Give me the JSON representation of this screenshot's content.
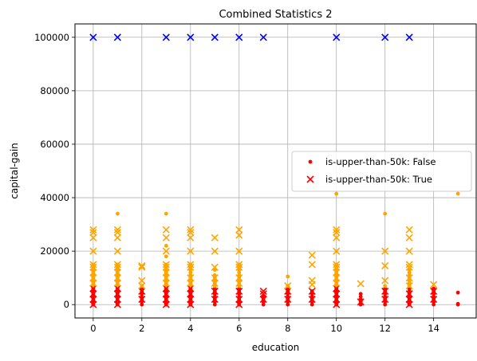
{
  "chart_data": {
    "type": "scatter",
    "title": "Combined Statistics 2",
    "xlabel": "education",
    "ylabel": "capital-gain",
    "xlim": [
      -0.75,
      15.75
    ],
    "ylim": [
      -5000,
      105000
    ],
    "xticks": [
      0,
      2,
      4,
      6,
      8,
      10,
      12,
      14
    ],
    "yticks": [
      0,
      20000,
      40000,
      60000,
      80000,
      100000
    ],
    "grid": true,
    "legend": "center-right",
    "colors": {
      "low": "#ff0000",
      "mid": "#ffa500",
      "high": "#0000ff"
    },
    "series": [
      {
        "name": "is-upper-than-50k: False",
        "marker": "dot",
        "points": [
          [
            0,
            0
          ],
          [
            0,
            1000
          ],
          [
            0,
            2000
          ],
          [
            0,
            3000
          ],
          [
            0,
            4000
          ],
          [
            0,
            5000
          ],
          [
            0,
            6000
          ],
          [
            0,
            7000
          ],
          [
            0,
            8000
          ],
          [
            0,
            9000
          ],
          [
            0,
            10000
          ],
          [
            0,
            11000
          ],
          [
            0,
            12000
          ],
          [
            0,
            13000
          ],
          [
            0,
            14000
          ],
          [
            0,
            15000
          ],
          [
            1,
            0
          ],
          [
            1,
            1000
          ],
          [
            1,
            2000
          ],
          [
            1,
            3000
          ],
          [
            1,
            4000
          ],
          [
            1,
            5000
          ],
          [
            1,
            6000
          ],
          [
            1,
            7000
          ],
          [
            1,
            8000
          ],
          [
            1,
            9000
          ],
          [
            1,
            10000
          ],
          [
            1,
            11000
          ],
          [
            1,
            12000
          ],
          [
            1,
            13000
          ],
          [
            1,
            14000
          ],
          [
            1,
            15000
          ],
          [
            1,
            34000
          ],
          [
            2,
            0
          ],
          [
            2,
            1000
          ],
          [
            2,
            2000
          ],
          [
            2,
            3000
          ],
          [
            2,
            4000
          ],
          [
            2,
            5000
          ],
          [
            2,
            6000
          ],
          [
            2,
            7000
          ],
          [
            3,
            0
          ],
          [
            3,
            1000
          ],
          [
            3,
            2000
          ],
          [
            3,
            3000
          ],
          [
            3,
            4000
          ],
          [
            3,
            5000
          ],
          [
            3,
            6000
          ],
          [
            3,
            7000
          ],
          [
            3,
            8000
          ],
          [
            3,
            9000
          ],
          [
            3,
            10000
          ],
          [
            3,
            11000
          ],
          [
            3,
            12000
          ],
          [
            3,
            13000
          ],
          [
            3,
            14000
          ],
          [
            3,
            15000
          ],
          [
            3,
            18000
          ],
          [
            3,
            22000
          ],
          [
            3,
            34000
          ],
          [
            4,
            0
          ],
          [
            4,
            1000
          ],
          [
            4,
            2000
          ],
          [
            4,
            3000
          ],
          [
            4,
            4000
          ],
          [
            4,
            5000
          ],
          [
            4,
            6000
          ],
          [
            4,
            7000
          ],
          [
            4,
            8000
          ],
          [
            4,
            9000
          ],
          [
            4,
            10000
          ],
          [
            4,
            11000
          ],
          [
            4,
            12000
          ],
          [
            4,
            13000
          ],
          [
            4,
            14000
          ],
          [
            4,
            15000
          ],
          [
            5,
            0
          ],
          [
            5,
            1000
          ],
          [
            5,
            2000
          ],
          [
            5,
            3000
          ],
          [
            5,
            4000
          ],
          [
            5,
            5000
          ],
          [
            5,
            6000
          ],
          [
            5,
            7000
          ],
          [
            5,
            8000
          ],
          [
            5,
            9000
          ],
          [
            5,
            10000
          ],
          [
            5,
            11000
          ],
          [
            5,
            13000
          ],
          [
            6,
            0
          ],
          [
            6,
            1000
          ],
          [
            6,
            2000
          ],
          [
            6,
            3000
          ],
          [
            6,
            4000
          ],
          [
            6,
            5000
          ],
          [
            6,
            6000
          ],
          [
            6,
            7000
          ],
          [
            6,
            8000
          ],
          [
            6,
            9000
          ],
          [
            6,
            10000
          ],
          [
            6,
            11000
          ],
          [
            6,
            12000
          ],
          [
            6,
            13000
          ],
          [
            6,
            14000
          ],
          [
            6,
            15000
          ],
          [
            7,
            0
          ],
          [
            7,
            1000
          ],
          [
            7,
            2000
          ],
          [
            7,
            3000
          ],
          [
            8,
            0
          ],
          [
            8,
            1000
          ],
          [
            8,
            2000
          ],
          [
            8,
            3000
          ],
          [
            8,
            4000
          ],
          [
            8,
            5000
          ],
          [
            8,
            6000
          ],
          [
            8,
            7000
          ],
          [
            8,
            10500
          ],
          [
            9,
            0
          ],
          [
            9,
            1000
          ],
          [
            9,
            2000
          ],
          [
            9,
            3000
          ],
          [
            9,
            4000
          ],
          [
            9,
            5000
          ],
          [
            10,
            0
          ],
          [
            10,
            1000
          ],
          [
            10,
            2000
          ],
          [
            10,
            3000
          ],
          [
            10,
            4000
          ],
          [
            10,
            5000
          ],
          [
            10,
            6000
          ],
          [
            10,
            7000
          ],
          [
            10,
            8000
          ],
          [
            10,
            9000
          ],
          [
            10,
            10000
          ],
          [
            10,
            11000
          ],
          [
            10,
            12000
          ],
          [
            10,
            13000
          ],
          [
            10,
            14000
          ],
          [
            10,
            15000
          ],
          [
            10,
            41500
          ],
          [
            11,
            0
          ],
          [
            11,
            1000
          ],
          [
            11,
            2000
          ],
          [
            11,
            3000
          ],
          [
            11,
            4000
          ],
          [
            12,
            0
          ],
          [
            12,
            1000
          ],
          [
            12,
            2000
          ],
          [
            12,
            3000
          ],
          [
            12,
            4000
          ],
          [
            12,
            5000
          ],
          [
            12,
            6000
          ],
          [
            12,
            7000
          ],
          [
            12,
            34000
          ],
          [
            13,
            0
          ],
          [
            13,
            1000
          ],
          [
            13,
            2000
          ],
          [
            13,
            3000
          ],
          [
            13,
            4000
          ],
          [
            13,
            5000
          ],
          [
            13,
            6000
          ],
          [
            13,
            7000
          ],
          [
            13,
            8000
          ],
          [
            13,
            9000
          ],
          [
            13,
            10000
          ],
          [
            13,
            11000
          ],
          [
            13,
            12000
          ],
          [
            13,
            13000
          ],
          [
            14,
            0
          ],
          [
            14,
            1000
          ],
          [
            14,
            2000
          ],
          [
            14,
            3000
          ],
          [
            14,
            4000
          ],
          [
            14,
            5000
          ],
          [
            14,
            6000
          ],
          [
            15,
            0
          ],
          [
            15,
            300
          ],
          [
            15,
            4500
          ],
          [
            15,
            41500
          ]
        ]
      },
      {
        "name": "is-upper-than-50k: True",
        "marker": "x",
        "points": [
          [
            0,
            0
          ],
          [
            0,
            2000
          ],
          [
            0,
            4000
          ],
          [
            0,
            6000
          ],
          [
            0,
            8000
          ],
          [
            0,
            10000
          ],
          [
            0,
            12000
          ],
          [
            0,
            14000
          ],
          [
            0,
            15000
          ],
          [
            0,
            20000
          ],
          [
            0,
            25000
          ],
          [
            0,
            27000
          ],
          [
            0,
            28000
          ],
          [
            0,
            99999
          ],
          [
            1,
            0
          ],
          [
            1,
            2000
          ],
          [
            1,
            4000
          ],
          [
            1,
            6000
          ],
          [
            1,
            8000
          ],
          [
            1,
            10000
          ],
          [
            1,
            12000
          ],
          [
            1,
            14000
          ],
          [
            1,
            15000
          ],
          [
            1,
            20000
          ],
          [
            1,
            25000
          ],
          [
            1,
            27000
          ],
          [
            1,
            28000
          ],
          [
            1,
            99999
          ],
          [
            2,
            2000
          ],
          [
            2,
            5000
          ],
          [
            2,
            7000
          ],
          [
            2,
            9000
          ],
          [
            2,
            14000
          ],
          [
            2,
            14500
          ],
          [
            3,
            0
          ],
          [
            3,
            2000
          ],
          [
            3,
            4000
          ],
          [
            3,
            6000
          ],
          [
            3,
            8000
          ],
          [
            3,
            10000
          ],
          [
            3,
            12000
          ],
          [
            3,
            14000
          ],
          [
            3,
            15000
          ],
          [
            3,
            20000
          ],
          [
            3,
            25000
          ],
          [
            3,
            28000
          ],
          [
            3,
            99999
          ],
          [
            4,
            0
          ],
          [
            4,
            2000
          ],
          [
            4,
            4000
          ],
          [
            4,
            6000
          ],
          [
            4,
            8000
          ],
          [
            4,
            10000
          ],
          [
            4,
            14000
          ],
          [
            4,
            15000
          ],
          [
            4,
            20000
          ],
          [
            4,
            25000
          ],
          [
            4,
            27000
          ],
          [
            4,
            28000
          ],
          [
            4,
            99999
          ],
          [
            5,
            2000
          ],
          [
            5,
            5000
          ],
          [
            5,
            8000
          ],
          [
            5,
            10000
          ],
          [
            5,
            14000
          ],
          [
            5,
            20000
          ],
          [
            5,
            25000
          ],
          [
            5,
            99999
          ],
          [
            6,
            0
          ],
          [
            6,
            2000
          ],
          [
            6,
            5000
          ],
          [
            6,
            8000
          ],
          [
            6,
            10000
          ],
          [
            6,
            14000
          ],
          [
            6,
            15000
          ],
          [
            6,
            20000
          ],
          [
            6,
            26000
          ],
          [
            6,
            28000
          ],
          [
            6,
            99999
          ],
          [
            7,
            2000
          ],
          [
            7,
            4000
          ],
          [
            7,
            5000
          ],
          [
            7,
            99999
          ],
          [
            8,
            2000
          ],
          [
            8,
            5000
          ],
          [
            8,
            7000
          ],
          [
            9,
            2000
          ],
          [
            9,
            5000
          ],
          [
            9,
            7500
          ],
          [
            9,
            9000
          ],
          [
            9,
            15000
          ],
          [
            9,
            18500
          ],
          [
            10,
            0
          ],
          [
            10,
            2000
          ],
          [
            10,
            4000
          ],
          [
            10,
            6000
          ],
          [
            10,
            8000
          ],
          [
            10,
            10000
          ],
          [
            10,
            12000
          ],
          [
            10,
            14000
          ],
          [
            10,
            15000
          ],
          [
            10,
            20000
          ],
          [
            10,
            25000
          ],
          [
            10,
            27000
          ],
          [
            10,
            28000
          ],
          [
            10,
            99999
          ],
          [
            11,
            1000
          ],
          [
            11,
            7800
          ],
          [
            12,
            2000
          ],
          [
            12,
            5000
          ],
          [
            12,
            9000
          ],
          [
            12,
            14500
          ],
          [
            12,
            20000
          ],
          [
            12,
            99999
          ],
          [
            13,
            0
          ],
          [
            13,
            2000
          ],
          [
            13,
            4000
          ],
          [
            13,
            7000
          ],
          [
            13,
            10000
          ],
          [
            13,
            14000
          ],
          [
            13,
            15000
          ],
          [
            13,
            20000
          ],
          [
            13,
            25000
          ],
          [
            13,
            28000
          ],
          [
            13,
            99999
          ],
          [
            14,
            2000
          ],
          [
            14,
            5000
          ],
          [
            14,
            7500
          ]
        ]
      }
    ]
  }
}
